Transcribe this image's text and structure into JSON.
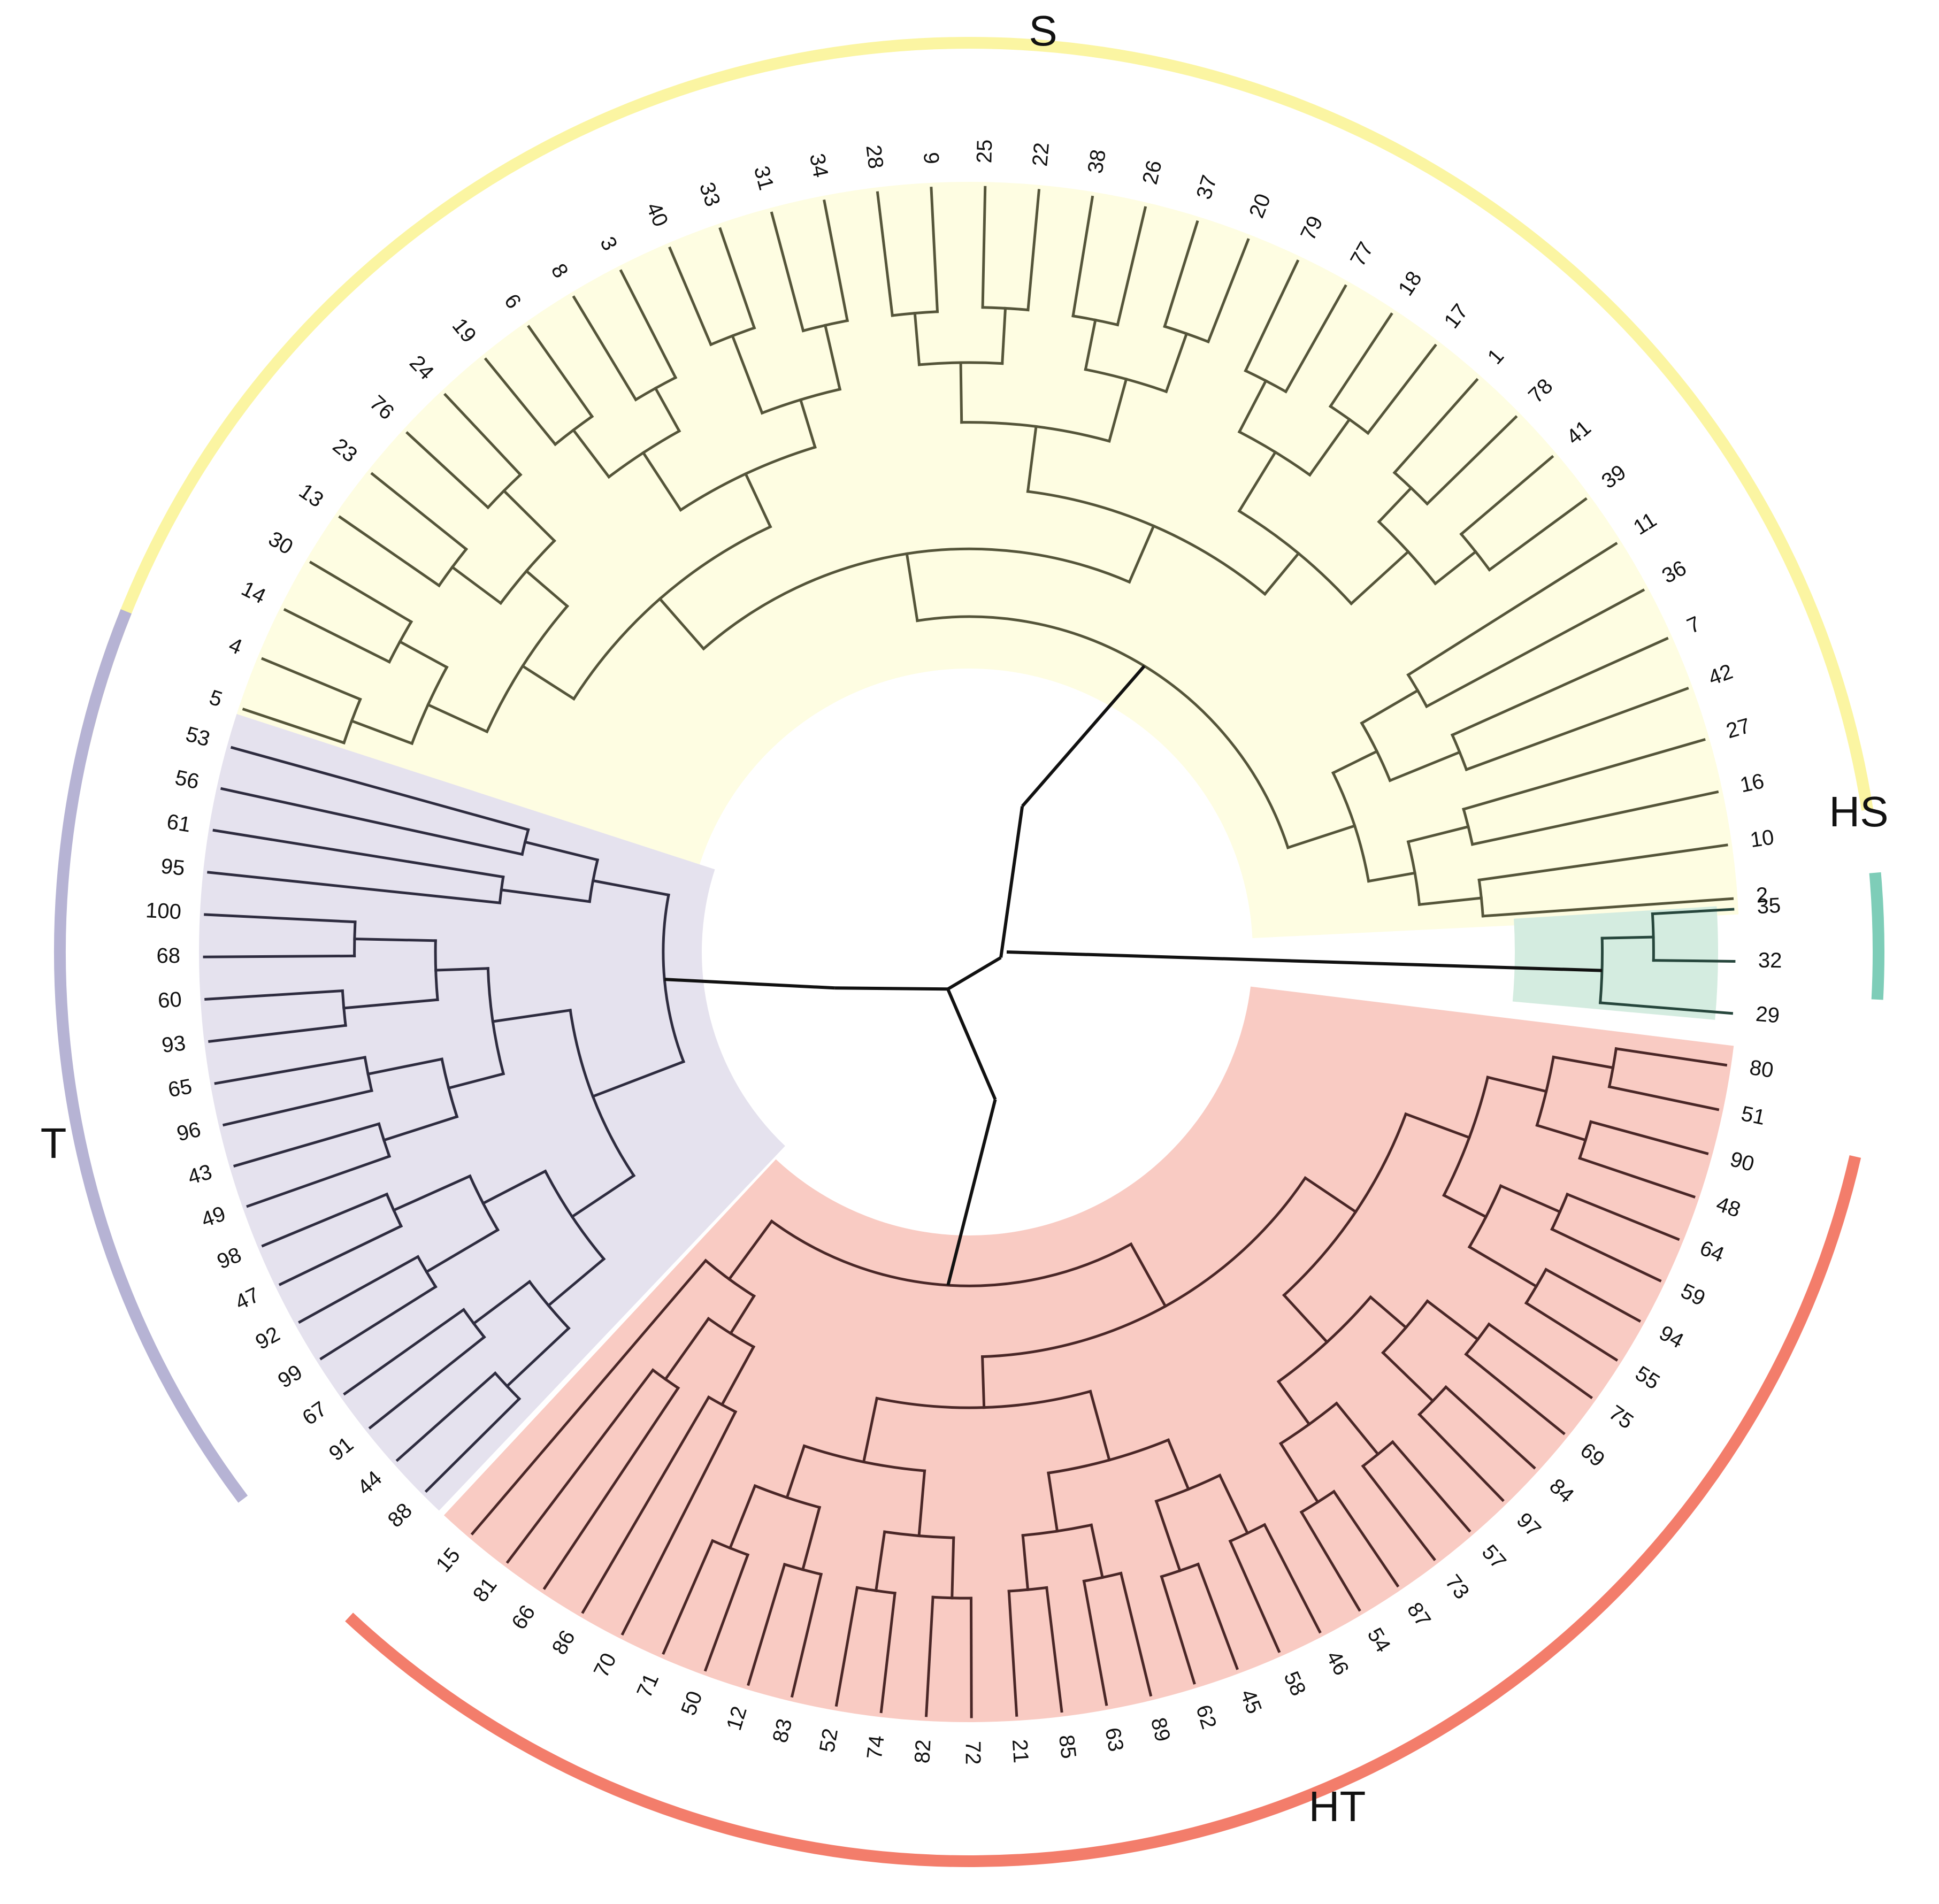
{
  "clades": [
    {
      "id": "S",
      "label": "S",
      "ring_color": "#FBF5A2",
      "fill_color": "#FEFDE2",
      "branch_color": "#55553A",
      "leaves": [
        "5",
        "4",
        "14",
        "30",
        "13",
        "23",
        "76",
        "24",
        "19",
        "6",
        "8",
        "3",
        "40",
        "33",
        "31",
        "34",
        "28",
        "9",
        "25",
        "22",
        "38",
        "26",
        "37",
        "20",
        "79",
        "77",
        "18",
        "17",
        "1",
        "78",
        "41",
        "39",
        "11",
        "36",
        "7",
        "42",
        "27",
        "16",
        "10",
        "2"
      ]
    },
    {
      "id": "HS",
      "label": "HS",
      "ring_color": "#7ECDB8",
      "fill_color": "#D4ECE0",
      "branch_color": "#26463C",
      "leaves": [
        "35",
        "32",
        "29"
      ]
    },
    {
      "id": "HT",
      "label": "HT",
      "ring_color": "#F37D6B",
      "fill_color": "#F9CBC3",
      "branch_color": "#4A2727",
      "leaves": [
        "80",
        "51",
        "90",
        "48",
        "64",
        "59",
        "94",
        "55",
        "75",
        "69",
        "84",
        "97",
        "57",
        "73",
        "87",
        "54",
        "46",
        "58",
        "45",
        "62",
        "89",
        "63",
        "85",
        "21",
        "72",
        "82",
        "74",
        "52",
        "83",
        "12",
        "50",
        "71",
        "70",
        "86",
        "66",
        "81",
        "15"
      ]
    },
    {
      "id": "T",
      "label": "T",
      "ring_color": "#B6B3D4",
      "fill_color": "#E5E2EE",
      "branch_color": "#2E2C3F",
      "leaves": [
        "88",
        "44",
        "91",
        "67",
        "99",
        "92",
        "47",
        "98",
        "49",
        "43",
        "96",
        "65",
        "93",
        "60",
        "68",
        "100",
        "95",
        "61",
        "56",
        "53"
      ]
    }
  ],
  "root_branch_color": "#111111"
}
